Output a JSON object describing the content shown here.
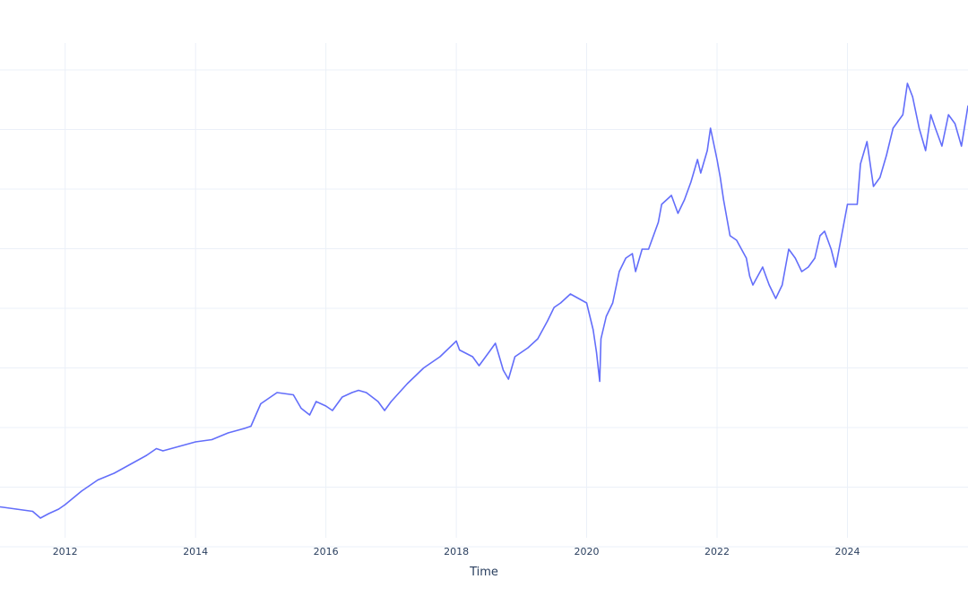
{
  "chart_data": {
    "type": "line",
    "title": "",
    "xlabel": "Time",
    "ylabel": "",
    "x_tick_labels": [
      "2012",
      "2014",
      "2016",
      "2018",
      "2020",
      "2022",
      "2024"
    ],
    "x_tick_years": [
      2012,
      2014,
      2016,
      2018,
      2020,
      2022,
      2024
    ],
    "xlim": [
      2011.0,
      2025.85
    ],
    "y_tick_labels": [],
    "ylim": [
      0,
      1
    ],
    "grid": true,
    "legend": "none",
    "colors": {
      "line": "#636efa",
      "grid": "#ebf0f8",
      "text": "#2a3f5f",
      "background": "#ffffff"
    },
    "series": [
      {
        "x": [
          2011.0,
          2011.25,
          2011.5,
          2011.62,
          2011.75,
          2011.9,
          2012.0,
          2012.25,
          2012.5,
          2012.75,
          2013.0,
          2013.25,
          2013.4,
          2013.5,
          2013.75,
          2014.0,
          2014.25,
          2014.5,
          2014.75,
          2014.85,
          2015.0,
          2015.25,
          2015.5,
          2015.62,
          2015.75,
          2015.85,
          2016.0,
          2016.1,
          2016.25,
          2016.4,
          2016.5,
          2016.62,
          2016.8,
          2016.9,
          2017.0,
          2017.25,
          2017.5,
          2017.75,
          2018.0,
          2018.05,
          2018.25,
          2018.35,
          2018.5,
          2018.6,
          2018.72,
          2018.8,
          2018.9,
          2019.0,
          2019.1,
          2019.25,
          2019.4,
          2019.5,
          2019.6,
          2019.75,
          2020.0,
          2020.1,
          2020.15,
          2020.2,
          2020.22,
          2020.3,
          2020.4,
          2020.5,
          2020.6,
          2020.7,
          2020.75,
          2020.85,
          2020.95,
          2021.1,
          2021.15,
          2021.3,
          2021.4,
          2021.5,
          2021.6,
          2021.7,
          2021.75,
          2021.85,
          2021.9,
          2022.0,
          2022.05,
          2022.1,
          2022.2,
          2022.3,
          2022.45,
          2022.5,
          2022.55,
          2022.7,
          2022.75,
          2022.8,
          2022.9,
          2023.0,
          2023.1,
          2023.2,
          2023.3,
          2023.4,
          2023.5,
          2023.58,
          2023.65,
          2023.75,
          2023.82,
          2024.0,
          2024.15,
          2024.2,
          2024.3,
          2024.4,
          2024.5,
          2024.6,
          2024.7,
          2024.85,
          2024.92,
          2025.0,
          2025.1,
          2025.2,
          2025.28,
          2025.35,
          2025.45,
          2025.55,
          2025.65,
          2025.75,
          2025.85
        ],
        "y": [
          0.025,
          0.02,
          0.015,
          0.0,
          0.01,
          0.02,
          0.03,
          0.06,
          0.085,
          0.1,
          0.12,
          0.14,
          0.155,
          0.15,
          0.16,
          0.17,
          0.175,
          0.19,
          0.2,
          0.205,
          0.255,
          0.28,
          0.275,
          0.245,
          0.23,
          0.26,
          0.25,
          0.24,
          0.27,
          0.28,
          0.285,
          0.28,
          0.26,
          0.24,
          0.26,
          0.3,
          0.335,
          0.36,
          0.395,
          0.375,
          0.36,
          0.34,
          0.37,
          0.39,
          0.33,
          0.31,
          0.36,
          0.37,
          0.38,
          0.4,
          0.44,
          0.47,
          0.48,
          0.5,
          0.48,
          0.42,
          0.37,
          0.305,
          0.4,
          0.45,
          0.48,
          0.55,
          0.58,
          0.59,
          0.55,
          0.6,
          0.6,
          0.66,
          0.7,
          0.72,
          0.68,
          0.71,
          0.75,
          0.8,
          0.77,
          0.82,
          0.87,
          0.8,
          0.76,
          0.71,
          0.63,
          0.62,
          0.58,
          0.54,
          0.52,
          0.56,
          0.54,
          0.52,
          0.49,
          0.52,
          0.6,
          0.58,
          0.55,
          0.56,
          0.58,
          0.63,
          0.64,
          0.6,
          0.56,
          0.7,
          0.7,
          0.79,
          0.84,
          0.74,
          0.76,
          0.81,
          0.87,
          0.9,
          0.97,
          0.94,
          0.87,
          0.82,
          0.9,
          0.87,
          0.83,
          0.9,
          0.88,
          0.83,
          0.92
        ]
      }
    ]
  }
}
